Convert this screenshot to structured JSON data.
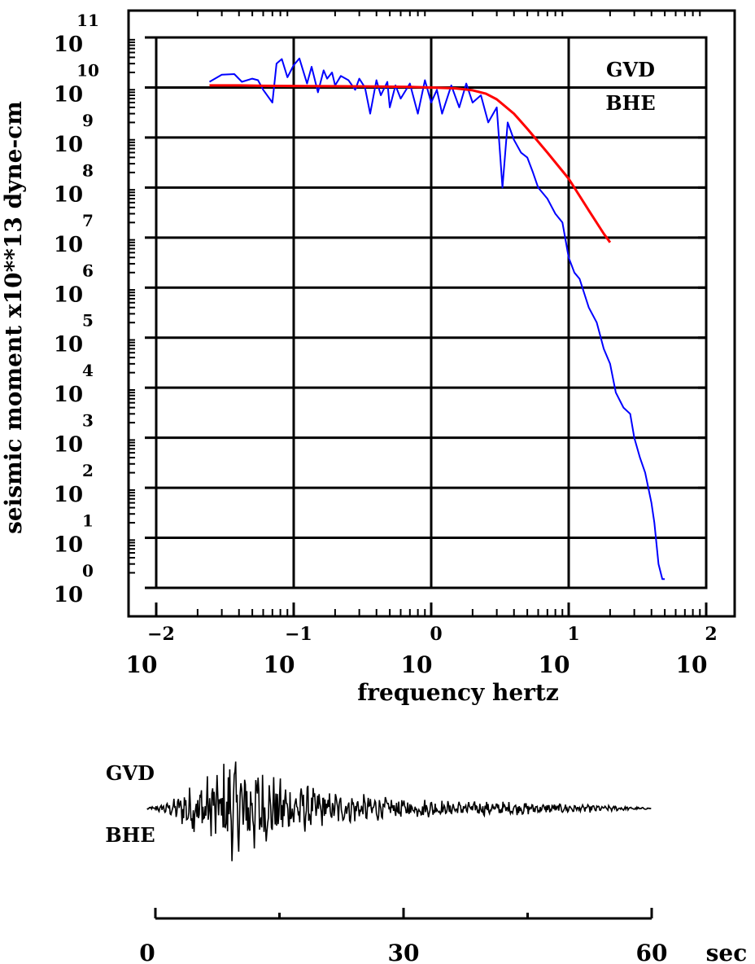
{
  "chart_data": [
    {
      "type": "line",
      "title": "",
      "xlabel": "frequency  hertz",
      "ylabel": "seismic moment x10**13 dyne-cm",
      "x_scale": "log",
      "y_scale": "log",
      "xlim": [
        0.01,
        100
      ],
      "ylim": [
        1,
        100000000000
      ],
      "grid": true,
      "station_label": "GVD",
      "channel_label": "BHE",
      "x_ticks": [
        {
          "base": "10",
          "exp": "-2"
        },
        {
          "base": "10",
          "exp": "-1"
        },
        {
          "base": "10",
          "exp": "0"
        },
        {
          "base": "10",
          "exp": "1"
        },
        {
          "base": "10",
          "exp": "2"
        }
      ],
      "y_ticks": [
        {
          "base": "10",
          "exp": "0"
        },
        {
          "base": "10",
          "exp": "1"
        },
        {
          "base": "10",
          "exp": "2"
        },
        {
          "base": "10",
          "exp": "3"
        },
        {
          "base": "10",
          "exp": "4"
        },
        {
          "base": "10",
          "exp": "5"
        },
        {
          "base": "10",
          "exp": "6"
        },
        {
          "base": "10",
          "exp": "7"
        },
        {
          "base": "10",
          "exp": "8"
        },
        {
          "base": "10",
          "exp": "9"
        },
        {
          "base": "10",
          "exp": "10"
        },
        {
          "base": "10",
          "exp": "11"
        }
      ],
      "series": [
        {
          "color": "#0000ff",
          "style": "observed spectrum",
          "x": [
            0.0244,
            0.03,
            0.037,
            0.042,
            0.05,
            0.055,
            0.06,
            0.07,
            0.075,
            0.082,
            0.09,
            0.1,
            0.11,
            0.125,
            0.135,
            0.15,
            0.165,
            0.175,
            0.19,
            0.2,
            0.22,
            0.25,
            0.28,
            0.3,
            0.33,
            0.36,
            0.4,
            0.43,
            0.48,
            0.5,
            0.55,
            0.6,
            0.7,
            0.8,
            0.9,
            1.0,
            1.1,
            1.2,
            1.4,
            1.6,
            1.8,
            2.0,
            2.3,
            2.6,
            3.0,
            3.3,
            3.6,
            4.0,
            4.5,
            5.0,
            5.5,
            6.0,
            7.0,
            8.0,
            9.0,
            10.0,
            11.0,
            12.0,
            14.0,
            16.0,
            18.0,
            20.0,
            22.0,
            25.0,
            28.0,
            30.0,
            33.0,
            36.0,
            40.0,
            42.0,
            45.0,
            48.0,
            50.0
          ],
          "y": [
            13000000000,
            18000000000,
            18500000000,
            13000000000,
            15000000000,
            14000000000,
            9000000000,
            5000000000,
            30000000000,
            37000000000,
            16000000000,
            28000000000,
            38000000000,
            12000000000,
            26000000000,
            8000000000,
            22000000000,
            15000000000,
            20000000000,
            11000000000,
            17000000000,
            14000000000,
            9000000000,
            15000000000,
            10000000000,
            3000000000,
            14000000000,
            7000000000,
            13000000000,
            4000000000,
            11000000000,
            6000000000,
            12000000000,
            3000000000,
            14000000000,
            5000000000,
            9000000000,
            3000000000,
            11000000000,
            4000000000,
            12000000000,
            5000000000,
            7000000000,
            2000000000,
            4000000000,
            100000000,
            2000000000,
            900000000,
            500000000,
            400000000,
            200000000,
            100000000,
            60000000,
            30000000,
            20000000,
            4000000,
            2000000,
            1500000,
            400000,
            200000,
            60000,
            30000,
            8000,
            4000,
            3000,
            1000,
            400,
            200,
            50,
            20,
            3,
            1.5,
            1.5
          ]
        },
        {
          "color": "#ff0000",
          "style": "model fit",
          "x": [
            0.0244,
            0.04,
            0.06,
            0.1,
            0.2,
            0.4,
            0.7,
            1.0,
            1.5,
            2.0,
            2.5,
            3.0,
            4.0,
            5.0,
            7.0,
            10.0,
            14.0,
            18.0,
            20.0
          ],
          "y": [
            11000000000,
            11000000000,
            10800000000,
            10700000000,
            10600000000,
            10500000000,
            10300000000,
            10000000000,
            9600000000,
            8800000000,
            7500000000,
            5800000000,
            3000000000,
            1500000000,
            500000000,
            150000000,
            35000000,
            12000000,
            8000000
          ]
        }
      ]
    },
    {
      "type": "line",
      "title": "",
      "xlabel": "sec",
      "station_label": "GVD",
      "channel_label": "BHE",
      "xlim": [
        0,
        60
      ],
      "x_ticks": [
        "0",
        "30",
        "60"
      ],
      "x_unit": "sec",
      "series": [
        {
          "color": "#000000",
          "style": "seismogram trace",
          "t_start": -1,
          "t_end": 60,
          "envelope": [
            [
              -1,
              0.02
            ],
            [
              2,
              0.15
            ],
            [
              4,
              0.45
            ],
            [
              6,
              0.6
            ],
            [
              8,
              0.85
            ],
            [
              9,
              1.0
            ],
            [
              10,
              0.9
            ],
            [
              11,
              1.0
            ],
            [
              13,
              0.75
            ],
            [
              16,
              0.55
            ],
            [
              19,
              0.4
            ],
            [
              22,
              0.32
            ],
            [
              26,
              0.25
            ],
            [
              30,
              0.2
            ],
            [
              35,
              0.16
            ],
            [
              40,
              0.14
            ],
            [
              44,
              0.12
            ],
            [
              50,
              0.09
            ],
            [
              55,
              0.06
            ],
            [
              58,
              0.03
            ],
            [
              60,
              0.01
            ]
          ]
        }
      ]
    }
  ]
}
